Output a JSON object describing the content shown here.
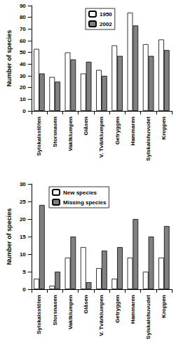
{
  "chart_data": [
    {
      "type": "bar",
      "y_label": "Number of species",
      "categories": [
        "Sylskalsstöten",
        "Storsnasen",
        "Vaktklumpen",
        "Glåsen",
        "V. Tvärklumpen",
        "Getryggen",
        "Hammaren",
        "Sylskalshuvudet",
        "Kroppen"
      ],
      "series": [
        {
          "name": "1950",
          "color": "#ffffff",
          "values": [
            53,
            29,
            50,
            32,
            35,
            56,
            84,
            57,
            61
          ]
        },
        {
          "name": "2002",
          "color": "#808080",
          "values": [
            32,
            25,
            44,
            42,
            30,
            47,
            73,
            47,
            52
          ]
        }
      ],
      "ylim": [
        0,
        90
      ],
      "yticks": [
        0,
        10,
        20,
        30,
        40,
        50,
        60,
        70,
        80,
        90
      ],
      "grid": false,
      "legend": "top"
    },
    {
      "type": "bar",
      "y_label": "Number of species",
      "categories": [
        "Sylskalsstöten",
        "Storsnasen",
        "Vaktklumpen",
        "Glåsen",
        "V. Tvärklumpen",
        "Getryggen",
        "Hammaren",
        "Sylskalshuvudet",
        "Kroppen"
      ],
      "series": [
        {
          "name": "New species",
          "color": "#ffffff",
          "values": [
            3,
            1,
            9,
            12,
            6,
            3,
            9,
            5,
            9
          ]
        },
        {
          "name": "Missing species",
          "color": "#808080",
          "values": [
            24,
            5,
            15,
            2,
            11,
            12,
            20,
            15,
            18
          ]
        }
      ],
      "ylim": [
        0,
        30
      ],
      "yticks": [
        0,
        5,
        10,
        15,
        20,
        25,
        30
      ],
      "grid": false,
      "legend": "top-left"
    }
  ]
}
